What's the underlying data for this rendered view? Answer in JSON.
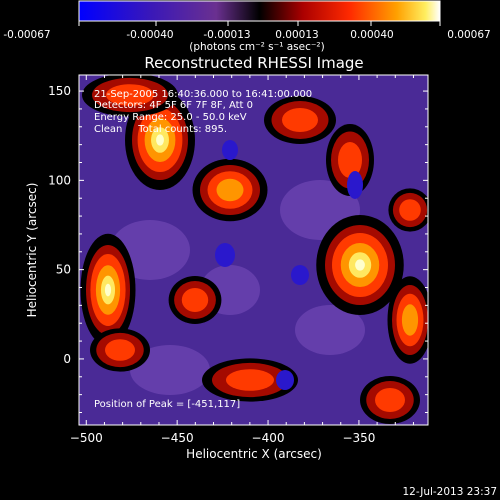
{
  "colorbar": {
    "tick_labels": [
      "-0.00067",
      "-0.00040",
      "-0.00013",
      "0.00013",
      "0.00040",
      "0.00067"
    ],
    "unit_label": "(photons cm⁻² s⁻¹ asec⁻²)"
  },
  "plot": {
    "title": "Reconstructed RHESSI Image",
    "info_lines": [
      "21-Sep-2005 16:40:36.000 to 16:41:00.000",
      "Detectors: 4F 5F 6F 7F 8F, Att 0",
      "Energy Range: 25.0 - 50.0 keV",
      "Clean     Total counts: 895."
    ],
    "peak_label": "Position of Peak = [-451,117]",
    "timestamp": "12-Jul-2013 23:37"
  },
  "chart_data": {
    "type": "heatmap",
    "title": "Reconstructed RHESSI Image",
    "xlabel": "Heliocentric X (arcsec)",
    "ylabel": "Heliocentric Y (arcsec)",
    "xlim": [
      -504,
      -312
    ],
    "ylim": [
      -37,
      159
    ],
    "x_ticks": [
      -500,
      -450,
      -400,
      -350
    ],
    "y_ticks": [
      0,
      50,
      100,
      150
    ],
    "x_tick_labels": [
      "−500",
      "−450",
      "−400",
      "−350"
    ],
    "y_tick_labels": [
      "0",
      "50",
      "100",
      "150"
    ],
    "colorbar_range": [
      -0.00067,
      0.00067
    ],
    "peak_position": [
      -451,
      117
    ],
    "colors": [
      "#0000ff",
      "#4d23a3",
      "#7a40a0",
      "#000000",
      "#8b0000",
      "#ff2a00",
      "#ff8c00",
      "#ffee55",
      "#ffffff"
    ]
  }
}
